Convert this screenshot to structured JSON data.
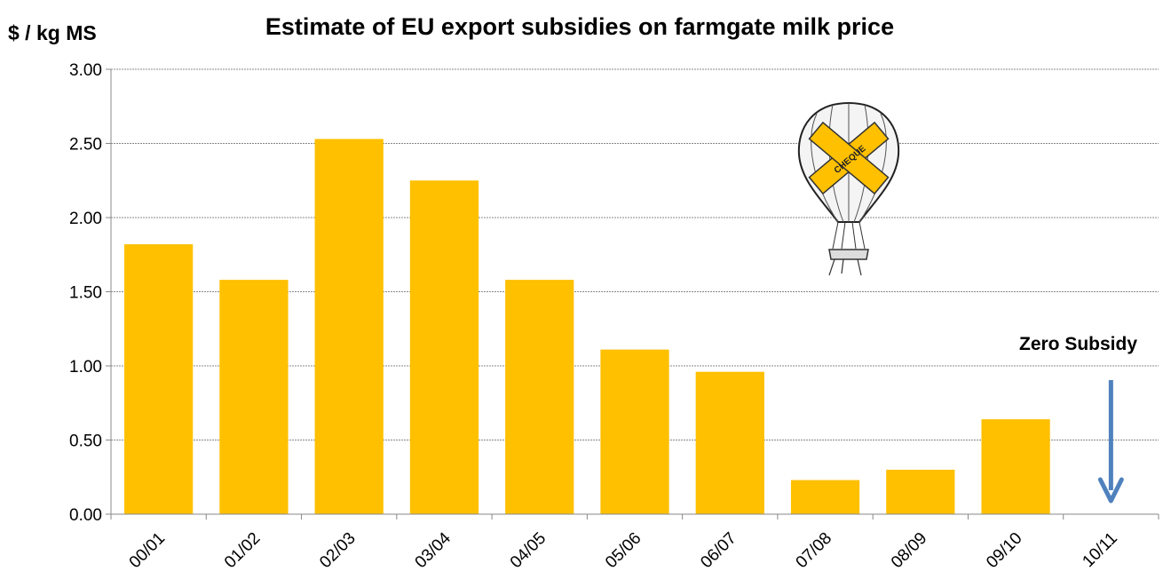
{
  "chart_data": {
    "type": "bar",
    "title": "Estimate of EU export subsidies on farmgate milk price",
    "ylabel": "$ / kg MS",
    "xlabel": "",
    "categories": [
      "00/01",
      "01/02",
      "02/03",
      "03/04",
      "04/05",
      "05/06",
      "06/07",
      "07/08",
      "08/09",
      "09/10",
      "10/11"
    ],
    "values": [
      1.82,
      1.58,
      2.53,
      2.25,
      1.58,
      1.11,
      0.96,
      0.23,
      0.3,
      0.64,
      0
    ],
    "ylim": [
      0,
      3
    ],
    "yticks": [
      "0.00",
      "0.50",
      "1.00",
      "1.50",
      "2.00",
      "2.50",
      "3.00"
    ],
    "grid": true,
    "bar_color": "#FFC000",
    "gridline_color": "#888888",
    "annotation": {
      "text": "Zero Subsidy",
      "category": "10/11",
      "arrow_color": "#4F81BD"
    },
    "balloon_label": "CHEQUE"
  }
}
